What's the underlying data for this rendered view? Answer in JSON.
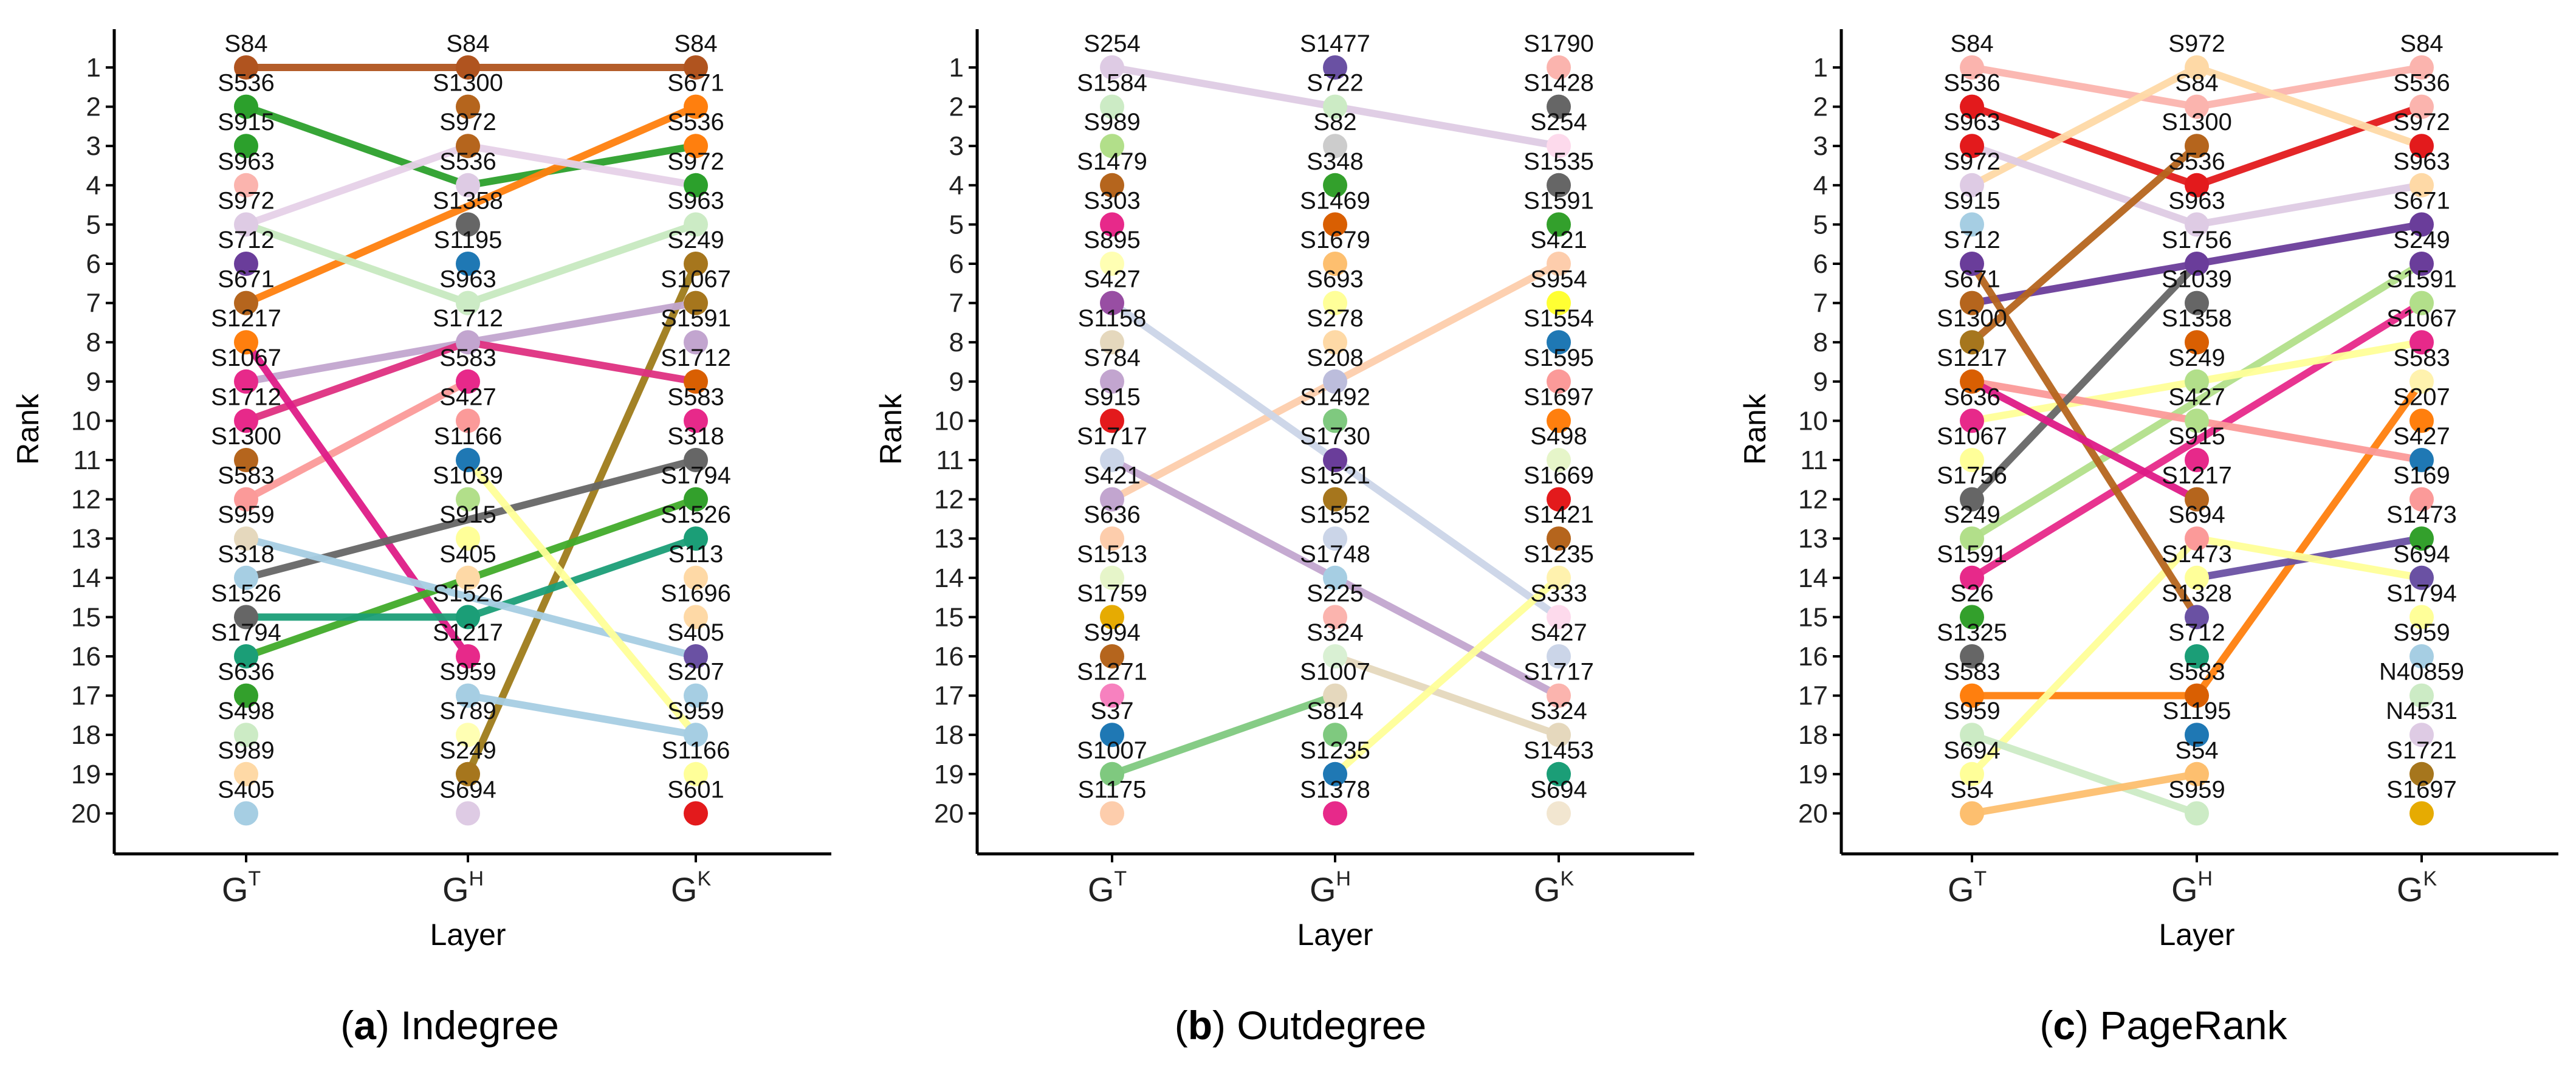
{
  "y_ticks": [
    "1",
    "2",
    "3",
    "4",
    "5",
    "6",
    "7",
    "8",
    "9",
    "10",
    "11",
    "12",
    "13",
    "14",
    "15",
    "16",
    "17",
    "18",
    "19",
    "20"
  ],
  "panels": [
    {
      "caption_letter": "(a)",
      "caption_title": "Indegree",
      "ylabel": "Rank",
      "xlabel": "Layer",
      "layers": [
        {
          "base": "G",
          "sup": "T"
        },
        {
          "base": "G",
          "sup": "H"
        },
        {
          "base": "G",
          "sup": "K"
        }
      ],
      "columns": [
        [
          "S84",
          "S536",
          "S915",
          "S963",
          "S972",
          "S712",
          "S671",
          "S1217",
          "S1067",
          "S1712",
          "S1300",
          "S583",
          "S959",
          "S318",
          "S1526",
          "S1794",
          "S636",
          "S498",
          "S989",
          "S405"
        ],
        [
          "S84",
          "S1300",
          "S972",
          "S536",
          "S1358",
          "S1195",
          "S963",
          "S1712",
          "S583",
          "S427",
          "S1166",
          "S1039",
          "S915",
          "S405",
          "S1526",
          "S1217",
          "S959",
          "S789",
          "S249",
          "S694"
        ],
        [
          "S84",
          "S671",
          "S536",
          "S972",
          "S963",
          "S249",
          "S1067",
          "S1591",
          "S1712",
          "S583",
          "S318",
          "S1794",
          "S1526",
          "S113",
          "S1696",
          "S405",
          "S207",
          "S959",
          "S1166",
          "S601"
        ]
      ],
      "lines": [
        {
          "color": "#b0541f",
          "ranks": [
            1,
            1,
            1
          ]
        },
        {
          "color": "#2ca02c",
          "ranks": [
            2,
            4,
            3
          ]
        },
        {
          "color": "#ff7f0e",
          "ranks": [
            7,
            null,
            2
          ]
        },
        {
          "color": "#b5652a",
          "ranks": [
            null,
            2,
            null
          ]
        },
        {
          "color": "#f4a9a8",
          "ranks": [
            3,
            null,
            null
          ]
        },
        {
          "color": "#a50f15",
          "ranks": [
            11,
            null,
            null
          ]
        },
        {
          "color": "#e6d1e8",
          "ranks": [
            5,
            3,
            4
          ]
        },
        {
          "color": "#c7e9c0",
          "ranks": [
            5,
            7,
            5
          ]
        },
        {
          "color": "#9e7b1a",
          "ranks": [
            null,
            19,
            6
          ]
        },
        {
          "color": "#c2a5cf",
          "ranks": [
            9,
            8,
            7
          ]
        },
        {
          "color": "#e7298a",
          "ranks": [
            8,
            null,
            null
          ]
        },
        {
          "color": "#de3081",
          "ranks": [
            10,
            8,
            9
          ]
        },
        {
          "color": "#fb9a99",
          "ranks": [
            12,
            9,
            null
          ]
        },
        {
          "color": "#de1b87",
          "ranks": [
            8,
            16,
            null
          ]
        },
        {
          "color": "#666666",
          "ranks": [
            14,
            null,
            11
          ]
        },
        {
          "color": "#41ab2a",
          "ranks": [
            16,
            null,
            12
          ]
        },
        {
          "color": "#1b9e77",
          "ranks": [
            15,
            15,
            13
          ]
        },
        {
          "color": "#a6cee3",
          "ranks": [
            20,
            null,
            null
          ]
        },
        {
          "color": "#a6cee3",
          "ranks": [
            13,
            null,
            16
          ]
        },
        {
          "color": "#a6cee3",
          "ranks": [
            null,
            17,
            18
          ]
        },
        {
          "color": "#ffff99",
          "ranks": [
            null,
            11,
            18
          ]
        }
      ],
      "dots": [
        [
          "#b0541f",
          "#2ca02c",
          "#2ca02c",
          "#fbb4ae",
          "#decbe4",
          "#6a3d9a",
          "#b5651d",
          "#ff7f0e",
          "#e7298a",
          "#e7298a",
          "#b5651d",
          "#fb9a99",
          "#e5d8bd",
          "#a6cee3",
          "#666666",
          "#1b9e77",
          "#33a02c",
          "#ccebc5",
          "#fed9a6",
          "#a6cee3"
        ],
        [
          "#b0541f",
          "#b5651d",
          "#b5651d",
          "#decbe4",
          "#666666",
          "#1f78b4",
          "#ccebc5",
          "#c2a5cf",
          "#e7298a",
          "#fb9a99",
          "#1f78b4",
          "#b2df8a",
          "#ffff99",
          "#fed9a6",
          "#1b9e77",
          "#e7298a",
          "#a6cee3",
          "#ffffb3",
          "#a6761d",
          "#decbe4"
        ],
        [
          "#b0541f",
          "#ff7f0e",
          "#ff7f0e",
          "#2ca02c",
          "#ccebc5",
          "#a6761d",
          "#a6761d",
          "#c2a5cf",
          "#d95f02",
          "#e7298a",
          "#666666",
          "#33a02c",
          "#1b9e77",
          "#fed9a6",
          "#fed9a6",
          "#6a51a3",
          "#a6cee3",
          "#a6cee3",
          "#ffff99",
          "#e31a1c"
        ]
      ]
    },
    {
      "caption_letter": "(b)",
      "caption_title": "Outdegree",
      "ylabel": "Rank",
      "xlabel": "Layer",
      "layers": [
        {
          "base": "G",
          "sup": "T"
        },
        {
          "base": "G",
          "sup": "H"
        },
        {
          "base": "G",
          "sup": "K"
        }
      ],
      "columns": [
        [
          "S254",
          "S1584",
          "S989",
          "S1479",
          "S303",
          "S895",
          "S427",
          "S1158",
          "S784",
          "S915",
          "S1717",
          "S421",
          "S636",
          "S1513",
          "S1759",
          "S994",
          "S1271",
          "S37",
          "S1007",
          "S1175"
        ],
        [
          "S1477",
          "S722",
          "S82",
          "S348",
          "S1469",
          "S1679",
          "S693",
          "S278",
          "S208",
          "S1492",
          "S1730",
          "S1521",
          "S1552",
          "S1748",
          "S225",
          "S324",
          "S1007",
          "S814",
          "S1235",
          "S1378"
        ],
        [
          "S1790",
          "S1428",
          "S254",
          "S1535",
          "S1591",
          "S421",
          "S954",
          "S1554",
          "S1595",
          "S1697",
          "S498",
          "S1669",
          "S1421",
          "S1235",
          "S333",
          "S427",
          "S1717",
          "S324",
          "S1453",
          "S694"
        ]
      ],
      "lines": [
        {
          "color": "#decbe4",
          "ranks": [
            1,
            2,
            3
          ]
        },
        {
          "color": "#fdcdac",
          "ranks": [
            12,
            null,
            6
          ]
        },
        {
          "color": "#cbd5e8",
          "ranks": [
            7,
            null,
            15
          ]
        },
        {
          "color": "#c2a5cf",
          "ranks": [
            11,
            null,
            17
          ]
        },
        {
          "color": "#e5d8bd",
          "ranks": [
            null,
            16,
            18
          ]
        },
        {
          "color": "#ffff99",
          "ranks": [
            null,
            19,
            14
          ]
        },
        {
          "color": "#7fc97f",
          "ranks": [
            19,
            17,
            null
          ]
        }
      ],
      "dots": [
        [
          "#decbe4",
          "#ccebc5",
          "#b2df8a",
          "#b5651d",
          "#e7298a",
          "#ffffb3",
          "#984ea3",
          "#e5d8bd",
          "#c2a5cf",
          "#e31a1c",
          "#cbd5e8",
          "#c2a5cf",
          "#fdcdac",
          "#e6f5c9",
          "#e6ab02",
          "#b5651d",
          "#f781bf",
          "#1f78b4",
          "#7fc97f",
          "#fdcdac"
        ],
        [
          "#6a51a3",
          "#ccebc5",
          "#cccccc",
          "#33a02c",
          "#d95f02",
          "#fdbf6f",
          "#ffff99",
          "#fed9a6",
          "#bcbddc",
          "#7fc97f",
          "#6a3d9a",
          "#a6761d",
          "#cbd5e8",
          "#a6cee3",
          "#fbb4ae",
          "#d9f0d3",
          "#e5d8bd",
          "#7fc97f",
          "#1f78b4",
          "#e7298a"
        ],
        [
          "#fbb4ae",
          "#666666",
          "#fddaec",
          "#666666",
          "#33a02c",
          "#fdcdac",
          "#ffff33",
          "#1f78b4",
          "#fb9a99",
          "#ff7f0e",
          "#e6f5c9",
          "#e31a1c",
          "#b5651d",
          "#fff2ae",
          "#fddaec",
          "#cbd5e8",
          "#fbb4ae",
          "#e5d8bd",
          "#1b9e77",
          "#f2e6d0"
        ]
      ]
    },
    {
      "caption_letter": "(c)",
      "caption_title": "PageRank",
      "ylabel": "Rank",
      "xlabel": "Layer",
      "layers": [
        {
          "base": "G",
          "sup": "T"
        },
        {
          "base": "G",
          "sup": "H"
        },
        {
          "base": "G",
          "sup": "K"
        }
      ],
      "columns": [
        [
          "S84",
          "S536",
          "S963",
          "S972",
          "S915",
          "S712",
          "S671",
          "S1300",
          "S1217",
          "S636",
          "S1067",
          "S1756",
          "S249",
          "S1591",
          "S26",
          "S1325",
          "S583",
          "S959",
          "S694",
          "S54"
        ],
        [
          "S972",
          "S84",
          "S1300",
          "S536",
          "S963",
          "S1756",
          "S1039",
          "S1358",
          "S249",
          "S427",
          "S915",
          "S1217",
          "S694",
          "S1473",
          "S1328",
          "S712",
          "S583",
          "S1195",
          "S54",
          "S959"
        ],
        [
          "S84",
          "S536",
          "S972",
          "S963",
          "S671",
          "S249",
          "S1591",
          "S1067",
          "S583",
          "S207",
          "S427",
          "S169",
          "S1473",
          "S694",
          "S1794",
          "S959",
          "N40859",
          "N4531",
          "S1721",
          "S1697"
        ]
      ],
      "lines": [
        {
          "color": "#fbb4ae",
          "ranks": [
            1,
            2,
            1
          ]
        },
        {
          "color": "#e31a1c",
          "ranks": [
            2,
            4,
            2
          ]
        },
        {
          "color": "#fed9a6",
          "ranks": [
            4,
            1,
            3
          ]
        },
        {
          "color": "#decbe4",
          "ranks": [
            3,
            5,
            4
          ]
        },
        {
          "color": "#6a3d9a",
          "ranks": [
            7,
            6,
            5
          ]
        },
        {
          "color": "#b2df8a",
          "ranks": [
            13,
            null,
            6
          ]
        },
        {
          "color": "#e7298a",
          "ranks": [
            14,
            null,
            7
          ]
        },
        {
          "color": "#ffff99",
          "ranks": [
            10,
            null,
            8
          ]
        },
        {
          "color": "#ff7f0e",
          "ranks": [
            17,
            17,
            9
          ]
        },
        {
          "color": "#fb9a99",
          "ranks": [
            9,
            null,
            11
          ]
        },
        {
          "color": "#6a51a3",
          "ranks": [
            null,
            14,
            13
          ]
        },
        {
          "color": "#ffff99",
          "ranks": [
            19,
            13,
            14
          ]
        },
        {
          "color": "#ccebc5",
          "ranks": [
            18,
            20,
            null
          ]
        },
        {
          "color": "#a6cee3",
          "ranks": [
            5,
            null,
            null
          ]
        },
        {
          "color": "#666666",
          "ranks": [
            12,
            6,
            null
          ]
        },
        {
          "color": "#b5651d",
          "ranks": [
            8,
            3,
            null
          ]
        },
        {
          "color": "#b5651d",
          "ranks": [
            6,
            15,
            null
          ]
        },
        {
          "color": "#de1b87",
          "ranks": [
            9,
            12,
            null
          ]
        },
        {
          "color": "#fdbf6f",
          "ranks": [
            20,
            19,
            null
          ]
        },
        {
          "color": "#b2df8a",
          "ranks": [
            null,
            9,
            null
          ]
        }
      ],
      "dots": [
        [
          "#fbb4ae",
          "#e31a1c",
          "#e31a1c",
          "#decbe4",
          "#a6cee3",
          "#6a3d9a",
          "#b5651d",
          "#a6761d",
          "#d95f02",
          "#e7298a",
          "#ffff99",
          "#666666",
          "#b2df8a",
          "#e7298a",
          "#33a02c",
          "#666666",
          "#ff7f0e",
          "#ccebc5",
          "#ffff99",
          "#fdbf6f"
        ],
        [
          "#fed9a6",
          "#fbb4ae",
          "#b5651d",
          "#e31a1c",
          "#decbe4",
          "#6a3d9a",
          "#666666",
          "#d95f02",
          "#b2df8a",
          "#b2df8a",
          "#e7298a",
          "#b5651d",
          "#fb9a99",
          "#ffff99",
          "#6a51a3",
          "#1b9e77",
          "#d95f02",
          "#1f78b4",
          "#fdbf6f",
          "#ccebc5"
        ],
        [
          "#fbb4ae",
          "#fbb4ae",
          "#e31a1c",
          "#fed9a6",
          "#6a3d9a",
          "#6a3d9a",
          "#b2df8a",
          "#e7298a",
          "#fff2ae",
          "#ff7f0e",
          "#1f78b4",
          "#fb9a99",
          "#33a02c",
          "#6a51a3",
          "#ffff99",
          "#a6cee3",
          "#ccebc5",
          "#decbe4",
          "#a6761d",
          "#e6ab02"
        ]
      ]
    }
  ],
  "chart_data": [
    {
      "type": "line",
      "title": "(a) Indegree",
      "xlabel": "Layer",
      "ylabel": "Rank",
      "categories": [
        "G^T",
        "G^H",
        "G^K"
      ],
      "ylim": [
        1,
        20
      ],
      "y_reversed": true,
      "rankings": {
        "G^T": [
          "S84",
          "S536",
          "S915",
          "S963",
          "S972",
          "S712",
          "S671",
          "S1217",
          "S1067",
          "S1712",
          "S1300",
          "S583",
          "S959",
          "S318",
          "S1526",
          "S1794",
          "S636",
          "S498",
          "S989",
          "S405"
        ],
        "G^H": [
          "S84",
          "S1300",
          "S972",
          "S536",
          "S1358",
          "S1195",
          "S963",
          "S1712",
          "S583",
          "S427",
          "S1166",
          "S1039",
          "S915",
          "S405",
          "S1526",
          "S1217",
          "S959",
          "S789",
          "S249",
          "S694"
        ],
        "G^K": [
          "S84",
          "S671",
          "S536",
          "S972",
          "S963",
          "S249",
          "S1067",
          "S1591",
          "S1712",
          "S583",
          "S318",
          "S1794",
          "S1526",
          "S113",
          "S1696",
          "S405",
          "S207",
          "S959",
          "S1166",
          "S601"
        ]
      }
    },
    {
      "type": "line",
      "title": "(b) Outdegree",
      "xlabel": "Layer",
      "ylabel": "Rank",
      "categories": [
        "G^T",
        "G^H",
        "G^K"
      ],
      "ylim": [
        1,
        20
      ],
      "y_reversed": true,
      "rankings": {
        "G^T": [
          "S254",
          "S1584",
          "S989",
          "S1479",
          "S303",
          "S895",
          "S427",
          "S1158",
          "S784",
          "S915",
          "S1717",
          "S421",
          "S636",
          "S1513",
          "S1759",
          "S994",
          "S1271",
          "S37",
          "S1007",
          "S1175"
        ],
        "G^H": [
          "S1477",
          "S722",
          "S82",
          "S348",
          "S1469",
          "S1679",
          "S693",
          "S278",
          "S208",
          "S1492",
          "S1730",
          "S1521",
          "S1552",
          "S1748",
          "S225",
          "S324",
          "S1007",
          "S814",
          "S1235",
          "S1378"
        ],
        "G^K": [
          "S1790",
          "S1428",
          "S254",
          "S1535",
          "S1591",
          "S421",
          "S954",
          "S1554",
          "S1595",
          "S1697",
          "S498",
          "S1669",
          "S1421",
          "S1235",
          "S333",
          "S427",
          "S1717",
          "S324",
          "S1453",
          "S694"
        ]
      }
    },
    {
      "type": "line",
      "title": "(c) PageRank",
      "xlabel": "Layer",
      "ylabel": "Rank",
      "categories": [
        "G^T",
        "G^H",
        "G^K"
      ],
      "ylim": [
        1,
        20
      ],
      "y_reversed": true,
      "rankings": {
        "G^T": [
          "S84",
          "S536",
          "S963",
          "S972",
          "S915",
          "S712",
          "S671",
          "S1300",
          "S1217",
          "S636",
          "S1067",
          "S1756",
          "S249",
          "S1591",
          "S26",
          "S1325",
          "S583",
          "S959",
          "S694",
          "S54"
        ],
        "G^H": [
          "S972",
          "S84",
          "S1300",
          "S536",
          "S963",
          "S1756",
          "S1039",
          "S1358",
          "S249",
          "S427",
          "S915",
          "S1217",
          "S694",
          "S1473",
          "S1328",
          "S712",
          "S583",
          "S1195",
          "S54",
          "S959"
        ],
        "G^K": [
          "S84",
          "S536",
          "S972",
          "S963",
          "S671",
          "S249",
          "S1591",
          "S1067",
          "S583",
          "S207",
          "S427",
          "S169",
          "S1473",
          "S694",
          "S1794",
          "S959",
          "N40859",
          "N4531",
          "S1721",
          "S1697"
        ]
      }
    }
  ]
}
